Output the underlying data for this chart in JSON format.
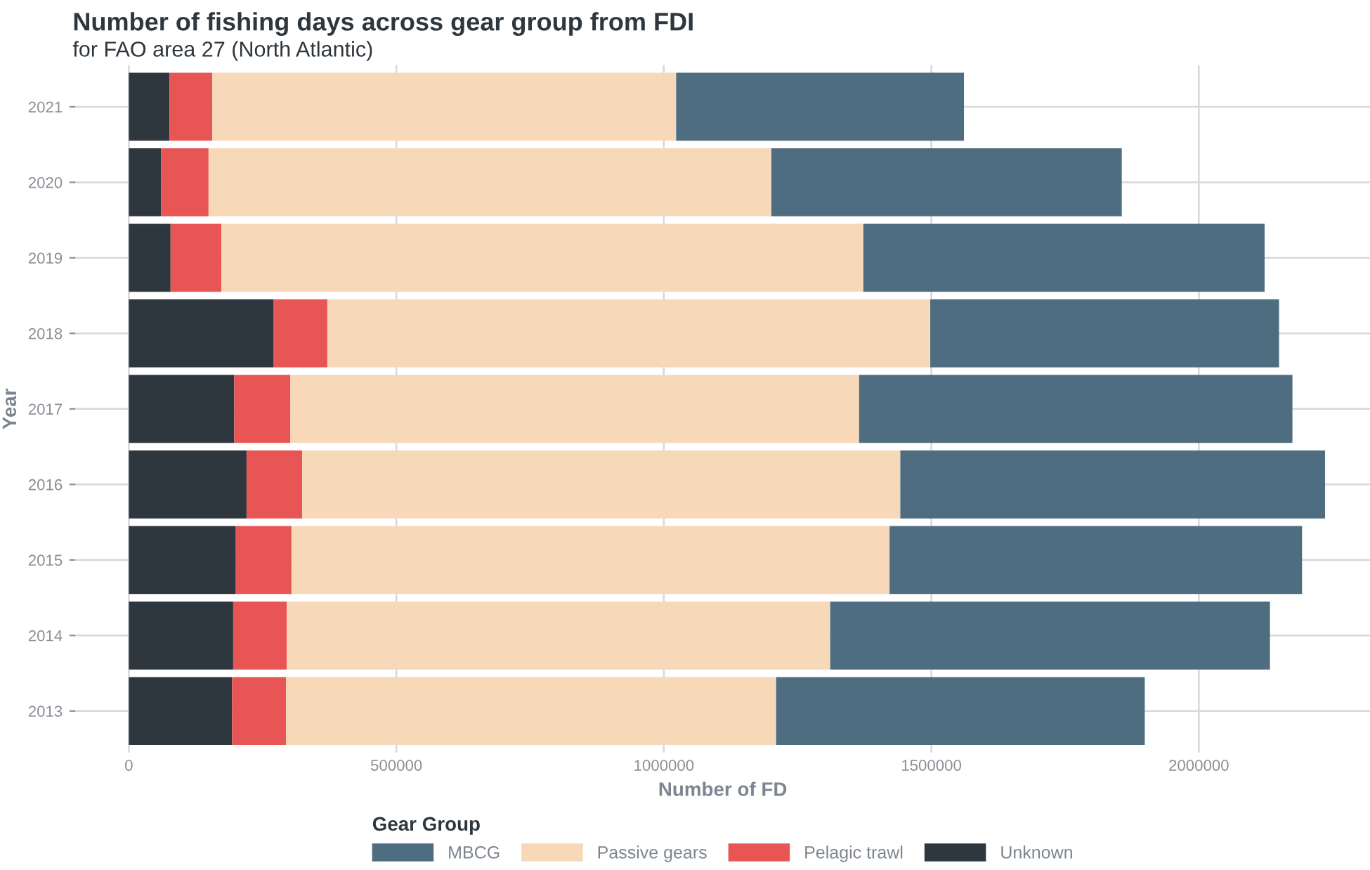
{
  "chart_data": {
    "type": "bar",
    "orientation": "horizontal",
    "stacked": true,
    "title": "Number of fishing days across gear group from FDI",
    "subtitle": "for FAO area 27 (North Atlantic)",
    "xlabel": "Number of FD",
    "ylabel": "Year",
    "legend_title": "Gear Group",
    "categories": [
      "2021",
      "2020",
      "2019",
      "2018",
      "2017",
      "2016",
      "2015",
      "2014",
      "2013"
    ],
    "series": [
      {
        "name": "Unknown",
        "color": "#2e363e",
        "values": [
          76000,
          60000,
          78000,
          270000,
          197000,
          220000,
          200000,
          195000,
          193000
        ]
      },
      {
        "name": "Pelagic trawl",
        "color": "#e85555",
        "values": [
          80000,
          89000,
          95000,
          101000,
          105000,
          104000,
          104000,
          100000,
          101000
        ]
      },
      {
        "name": "Passive gears",
        "color": "#f7d9b9",
        "values": [
          867000,
          1052000,
          1200000,
          1127000,
          1063000,
          1118000,
          1118000,
          1016000,
          916000
        ]
      },
      {
        "name": "MBCG",
        "color": "#4e6d80",
        "values": [
          538000,
          655000,
          750000,
          652000,
          810000,
          794000,
          771000,
          822000,
          689000
        ]
      }
    ],
    "xlim": [
      -100000,
      2320000
    ],
    "xticks": [
      0,
      500000,
      1000000,
      1500000,
      2000000
    ],
    "grid": true,
    "legend": "bottom"
  }
}
